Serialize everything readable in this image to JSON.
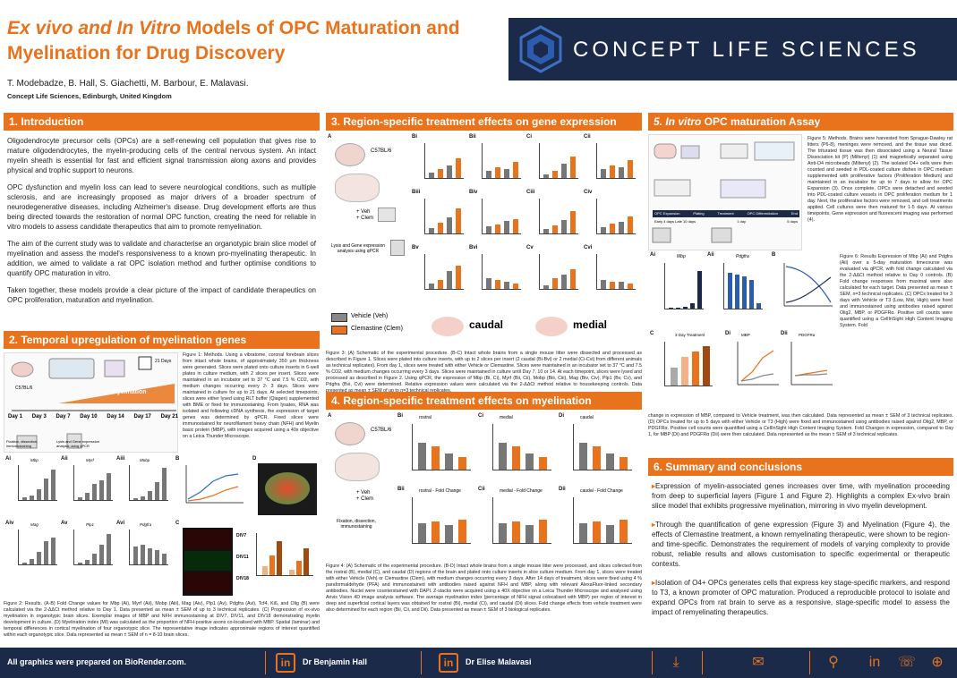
{
  "header": {
    "title_line1_italic": "Ex vivo and In Vitro",
    "title_line1_rest": " Models of OPC Maturation and",
    "title_line2": "Myelination for Drug Discovery",
    "authors": "T. Modebadze, B. Hall, S. Giachetti, M. Barbour, E. Malavasi.",
    "affiliation": "Concept Life Sciences, Edinburgh, United Kingdom",
    "brand": "CONCEPT LIFE SCIENCES"
  },
  "sec1": {
    "heading": "1. Introduction",
    "p1": "Oligodendrocyte precursor cells (OPCs) are a self-renewing cell population that gives rise to mature oligodendrocytes, the myelin-producing cells of the central nervous system. An intact myelin sheath is essential for fast and efficient signal transmission along axons and provides physical and trophic support to neurons.",
    "p2": "OPC dysfunction and myelin loss can lead to severe neurological conditions, such as multiple sclerosis, and are increasingly proposed as major drivers of a broader spectrum of neurodegenerative diseases, including Alzheimer's disease. Drug development efforts are thus being directed towards the restoration of normal OPC function, creating the need for reliable in vitro models to assess candidate therapeutics that aim to promote remyelination.",
    "p3": "The aim of the current study was to validate and characterise an organotypic brain slice model of myelination and assess the model's responsiveness to a known pro-myelinating therapeutic. In addition, we aimed to validate a rat OPC isolation method and further optimise conditions to quantify OPC maturation in vitro.",
    "p4": "Taken together, these models provide a clear picture of the impact of candidate therapeutics on OPC proliferation, maturation and myelination."
  },
  "sec2": {
    "heading": "2. Temporal upregulation of myelination genes",
    "fig1_caption": "Figure 1: Methods. Using a vibratome, coronal forebrain slices from intact whole brains, of approximately 350 µm thickness were generated. Slices were plated onto culture inserts in 6-well plates in culture medium, with 2 slices per insert. Slices were maintained in an incubator set to 37 °C and 7.5 % CO2, with medium changes occurring every 2- 3 days. Slices were maintained in culture for up to 21 days. At selected timepoints, slices were either lysed using RLT buffer (Qiagen) supplemented with BME or fixed for immunostaining. From lysates, RNA was isolated and following cDNA synthesis, the expression of target genes was determined by qPCR. Fixed slices were immunostained for neurofilament heavy chain (NFH) and Myelin basic protein (MBP), with images acquired using a 40x objective on a Leica Thunder Microscope.",
    "fig2_caption": "Figure 2: Results. (A-B) Fold Change values for Mbp (Ai), Myrf (Aii), Mobp (Aiii), Mag (Aiv), Plp1 (Av), Pdgfra (Avi), Tcf4, Ki6, and Olig (B) were calculated via the 2-ΔΔCt method relative to Day 1. Data presented as mean ± SEM of up to 3 technical replicates. (C) Progression of ex-vivo myelination in organotypic brain slices. Exemplar images of MBP and NFH immunostaining at DIV7, DIV11, and DIV18 demonstrating myelin development in culture. (D) Myelination index (MI) was calculated as the proportion of NFH-positive axons co-localised with MBP. Spatial (laminar) and temporal differences in cortical myelination of four organotypic slice. The representative image indicates approximate regions of interest quantified within each organotypic slice. Data represented as mean ± SEM of n = 8-10 brain slices.",
    "days": [
      "Day 1",
      "Day 3",
      "Day 7",
      "Day 10",
      "Day 14",
      "Day 17",
      "Day 21"
    ],
    "myelination_label": "Myelination",
    "days21": "21 Days",
    "strain": "C57BL/6",
    "step1": "Fixation, dissection, immunostaining",
    "step2": "Lysis and Gene expression analysis using qPCR",
    "panels": [
      "Ai",
      "Aii",
      "Aiii",
      "B",
      "D",
      "Aiv",
      "Av",
      "Avi",
      "C"
    ],
    "gene_labels": [
      "Mbp",
      "Myrf",
      "Mobp",
      "Mag",
      "Plp1",
      "Pdgfra"
    ],
    "div_labels": [
      "DIV7",
      "DIV11",
      "DIV18"
    ]
  },
  "sec3": {
    "heading": "3. Region-specific treatment effects on gene expression",
    "strain": "C57BL/6",
    "treatment": "+ Veh\n+ Clem",
    "lysis": "Lysis and Gene expression analysis using qPCR",
    "legend_veh": "Vehicle (Veh)",
    "legend_clem": "Clemastine (Clem)",
    "caudal": "caudal",
    "medial": "medial",
    "panels": [
      "A",
      "Bi",
      "Bii",
      "Ci",
      "Cii",
      "Biii",
      "Biv",
      "Ciii",
      "Civ",
      "Bv",
      "Bvi",
      "Cv",
      "Cvi"
    ],
    "caption": "Figure 3: (A) Schematic of the experimental procedure. (B-C) Intact whole brains from a single mouse litter were dissected and processed as described in Figure 1. Slices were plated into culture inserts, with up to 2 slices per insert (2 caudal (Bi-Bvi) or 2 medial (Ci-Cvi) from different animals as technical replicates). From day 1, slices were treated with either Vehicle or Clemastine. Slices were maintained in an incubator set to 37 °C and 7.5 % CO2, with medium changes occurring every 3 days. Slices were maintained in culture until Day 7, 10 or 14. At each timepoint, slices were lysed and processed as described in Figure 2. Using qPCR, the expression of Mbp (Bi, Ci), Myrf (Bii, Cii), Mobp (Biii, Ciii), Mag (Biv, Civ), Plp1 (Bv, Cv), and Pdgfra (Bvi, Cvi) were determined. Relative expression values were calculated via the 2-ΔΔCt method relative to housekeeping controls. Data presented as mean ± SEM of up to n=3 technical replicates."
  },
  "sec4": {
    "heading": "4. Region-specific treatment effects on myelination",
    "strain": "C57BL/6",
    "treatment": "+ Veh\n+ Clem",
    "step": "Fixation, dissection, immunostaining",
    "panels": [
      "A",
      "Bi",
      "Ci",
      "Di",
      "Bii",
      "Cii",
      "Dii"
    ],
    "chart_titles": [
      "rostral",
      "medial",
      "caudal",
      "rostral - Fold Change",
      "medial - Fold Change",
      "caudal - Fold Change"
    ],
    "caption": "Figure 4: (A) Schematic of the experimental procedure. (B-D) Intact whole brains from a single mouse litter were processed, and slices collected from the rostral (B), medial (C), and caudal (D) regions of the brain and plated onto culture inserts in slice culture medium. From day 1, slices were treated with either Vehicle (Veh) or Clemastine (Clem), with medium changes occurring every 3 days. After 14 days of treatment, slices were fixed using 4 % paraformaldehyde (PFA) and immunostained with antibodies raised against NFH and MBP, along with relevant AlexaFluor-linked secondary antibodies. Nuclei were counterstained with DAPI. Z-stacks were acquired using a 40X objective on a Leica Thunder Microscope and analysed using Arivis Vision 4D image analysis software. The average myelination index (percentage of NFH signal colocalised with MBP) per region of interest in deep and superficial cortical layers was obtained for rostral (Bi), medial (Ci), and caudal (Di) slices. Fold change effects from vehicle treatment were also determined for each region (Bii, Cii, and Dii). Data presented as mean ± SEM of 3 biological replicates."
  },
  "sec5": {
    "heading_italic": "5. In vitro",
    "heading_rest": " OPC maturation Assay",
    "fig5_caption": "Figure 5: Methods. Brains were harvested from Sprague-Dawley rat litters (P6-8), meninges were removed, and the tissue was diced. The triturated tissue was then dissociated using a Neural Tissue Dissociation kit (P) (Miltenyi) (1) and magnetically separated using Anti-O4 microbeads (Miltenyi) (2). The isolated O4+ cells were then counted and seeded in PDL-coated culture dishes in OPC medium supplemented with proliferative factors (Proliferation Medium) and maintained in an incubator for up to 7 days to allow for OPC Expansion (3). Once complete, OPCs were detached and seeded into PDL-coated culture vessels in OPC proliferation medium for 1 day. Next, the proliferative factors were removed, and cell treatments applied. Cell cultures were then matured for 1-5 days. At various timepoints, Gene expression and fluorescent imaging was performed (4).",
    "fig6_caption_a": "Figure 6: Results Expression of Mbp (Ai) and Pdgfra (Aii) over a 5-day maturation timecourse was evaluated via qPCR, with fold change calculated via the 2-ΔΔCt method relative to Day 0 controls. (B) Fold change responses from maximal were also calculated for each target. Data presented as mean ± SEM. n=3 technical replicates. (C) OPCs treated for 3 days with Vehicle or T3 (Low, Mid, High) were fixed and immunostained using antibodies raised against Olig2, MBP, or PDGFRα. Positive cell counts were quantified using a CellInSight High Content Imaging System. Fold",
    "fig6_caption_b": "change in expression of MBP, compared to Vehicle treatment, was then calculated. Data represented as mean ± SEM of 3 technical replicates. (D) OPCs treated for up to 5 days with either Vehicle or T3 (High) were fixed and immunostained using antibodies raised against Olig2, MBP, or PDGFRα. Positive cell counts were quantified using a CellInSight High Content Imaging System. Fold Changes in expression, compared to Day 1, for MBP (Di) and PDGFRα (Dii) were then calculated. Data represented as the mean ± SEM of 3 technical replicates.",
    "panels": [
      "Ai",
      "Aii",
      "B",
      "C",
      "Di",
      "Dii"
    ],
    "labels": [
      "Mbp",
      "Pdgfra",
      "3 Day Treatment",
      "MBP",
      "PDGFRα"
    ],
    "steps": [
      "OPC Expansion",
      "Plating",
      "Treatment",
      "OPC Differentiation",
      "End"
    ],
    "step_times": [
      "Early 4 days Late 10 days",
      "1 day",
      "5 days"
    ]
  },
  "sec6": {
    "heading": "6. Summary and conclusions",
    "s1": "Expression of myelin-associated genes increases over time, with myelination proceeding from deep to superficial layers (Figure 1 and Figure 2). Highlights a complex Ex-vivo brain slice model that exhibits progressive myelination, mirroring in vivo myelin development.",
    "s2": "Through the quantification of gene expression (Figure 3) and Myelination (Figure 4), the effects of Clemastine treatment, a known remyelinating therapeutic, were shown to be region- and time-specific. Demonstrates the requirement of models of varying complexity to provide robust, reliable results and allows customisation to specific experimental or therapeutic contexts.",
    "s3": "Isolation of O4+ OPCs generates cells that express key stage-specific markers, and respond to T3, a known promoter of OPC maturation. Produced a reproducible protocol to isolate and expand OPCs from rat brain to serve as a responsive, stage-specific model to assess the impact of remyelinating therapeutics."
  },
  "footer": {
    "biorender": "All graphics were prepared on BioRender.com.",
    "contact1": "Dr Benjamin Hall",
    "contact2": "Dr Elise Malavasi"
  },
  "colors": {
    "accent": "#e8731c",
    "navy": "#1c2a4a"
  }
}
